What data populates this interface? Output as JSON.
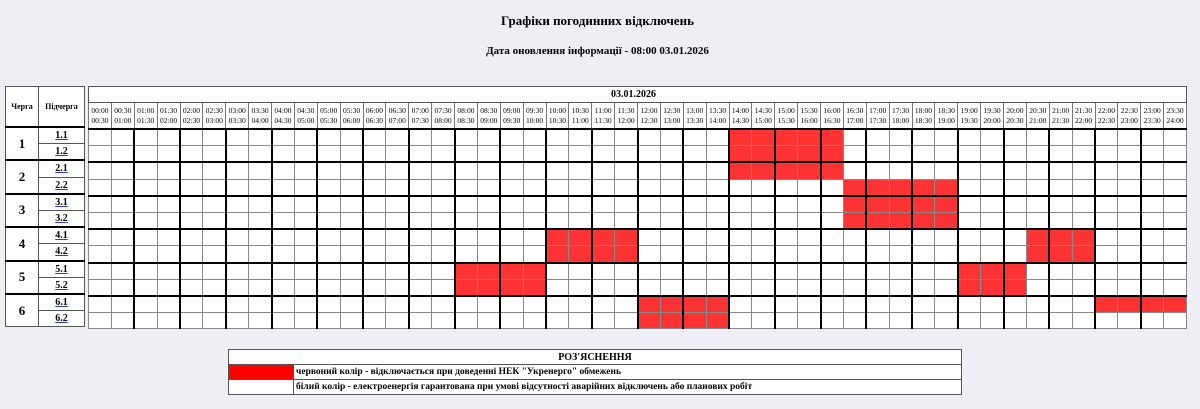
{
  "header": {
    "title": "Графіки погодинних відключень",
    "updated": "Дата оновлення інформації - 08:00 03.01.2026"
  },
  "table": {
    "queue_header": "Черга",
    "subqueue_header": "Підчерга",
    "date": "03.01.2026",
    "slots": [
      [
        "00:00",
        "00:30"
      ],
      [
        "00:30",
        "01:00"
      ],
      [
        "01:00",
        "01:30"
      ],
      [
        "01:30",
        "02:00"
      ],
      [
        "02:00",
        "02:30"
      ],
      [
        "02:30",
        "03:00"
      ],
      [
        "03:00",
        "03:30"
      ],
      [
        "03:30",
        "04:00"
      ],
      [
        "04:00",
        "04:30"
      ],
      [
        "04:30",
        "05:00"
      ],
      [
        "05:00",
        "05:30"
      ],
      [
        "05:30",
        "06:00"
      ],
      [
        "06:00",
        "06:30"
      ],
      [
        "06:30",
        "07:00"
      ],
      [
        "07:00",
        "07:30"
      ],
      [
        "07:30",
        "08:00"
      ],
      [
        "08:00",
        "08:30"
      ],
      [
        "08:30",
        "09:00"
      ],
      [
        "09:00",
        "09:30"
      ],
      [
        "09:30",
        "10:00"
      ],
      [
        "10:00",
        "10:30"
      ],
      [
        "10:30",
        "11:00"
      ],
      [
        "11:00",
        "11:30"
      ],
      [
        "11:30",
        "12:00"
      ],
      [
        "12:00",
        "12:30"
      ],
      [
        "12:30",
        "13:00"
      ],
      [
        "13:00",
        "13:30"
      ],
      [
        "13:30",
        "14:00"
      ],
      [
        "14:00",
        "14:30"
      ],
      [
        "14:30",
        "15:00"
      ],
      [
        "15:00",
        "15:30"
      ],
      [
        "15:30",
        "16:00"
      ],
      [
        "16:00",
        "16:30"
      ],
      [
        "16:30",
        "17:00"
      ],
      [
        "17:00",
        "17:30"
      ],
      [
        "17:30",
        "18:00"
      ],
      [
        "18:00",
        "18:30"
      ],
      [
        "18:30",
        "19:00"
      ],
      [
        "19:00",
        "19:30"
      ],
      [
        "19:30",
        "20:00"
      ],
      [
        "20:00",
        "20:30"
      ],
      [
        "20:30",
        "21:00"
      ],
      [
        "21:00",
        "21:30"
      ],
      [
        "21:30",
        "22:00"
      ],
      [
        "22:00",
        "22:30"
      ],
      [
        "22:30",
        "23:00"
      ],
      [
        "23:00",
        "23:30"
      ],
      [
        "23:30",
        "24:00"
      ]
    ],
    "queues": [
      {
        "label": "1",
        "subs": [
          {
            "label": "1.1",
            "off": [
              "14:00-16:30"
            ]
          },
          {
            "label": "1.2",
            "off": [
              "14:00-16:30"
            ]
          }
        ]
      },
      {
        "label": "2",
        "subs": [
          {
            "label": "2.1",
            "off": [
              "14:00-16:30"
            ]
          },
          {
            "label": "2.2",
            "off": [
              "16:30-19:00"
            ]
          }
        ]
      },
      {
        "label": "3",
        "subs": [
          {
            "label": "3.1",
            "off": [
              "16:30-19:00"
            ]
          },
          {
            "label": "3.2",
            "off": [
              "16:30-19:00"
            ]
          }
        ]
      },
      {
        "label": "4",
        "subs": [
          {
            "label": "4.1",
            "off": [
              "10:00-12:00",
              "20:30-22:00"
            ]
          },
          {
            "label": "4.2",
            "off": [
              "10:00-12:00",
              "20:30-22:00"
            ]
          }
        ]
      },
      {
        "label": "5",
        "subs": [
          {
            "label": "5.1",
            "off": [
              "08:00-10:00",
              "19:00-20:30"
            ]
          },
          {
            "label": "5.2",
            "off": [
              "08:00-10:00",
              "19:00-20:30"
            ]
          }
        ]
      },
      {
        "label": "6",
        "subs": [
          {
            "label": "6.1",
            "off": [
              "12:00-14:00",
              "22:00-24:00"
            ]
          },
          {
            "label": "6.2",
            "off": [
              "12:00-14:00"
            ]
          }
        ]
      }
    ]
  },
  "legend": {
    "title": "РОЗ'ЯСНЕННЯ",
    "items": [
      {
        "color": "#ff0000",
        "text": "червоний колір - відключається при доведенні НЕК \"Укренерго\" обмежень"
      },
      {
        "color": "#ffffff",
        "text": "білий колір - електроенергія гарантована при умові відсутності аварійних відключень або планових робіт"
      }
    ]
  },
  "colors": {
    "off": "#ff3333",
    "on": "#ffffff"
  }
}
